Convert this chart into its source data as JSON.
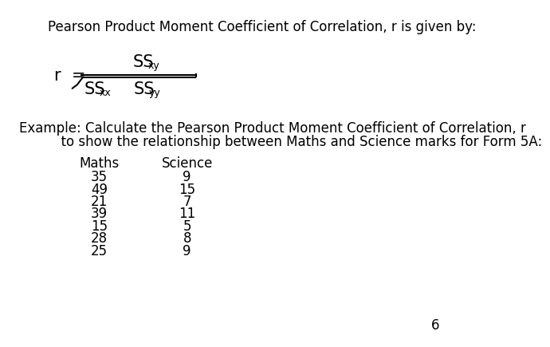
{
  "bg_color": "#ffffff",
  "title_text": "Pearson Product Moment Coefficient of Correlation, r is given by:",
  "example_line1": "Example: Calculate the Pearson Product Moment Coefficient of Correlation, r",
  "example_line2": "          to show the relationship between Maths and Science marks for Form 5A:",
  "col1_header": "Maths",
  "col2_header": "Science",
  "maths": [
    35,
    49,
    21,
    39,
    15,
    28,
    25
  ],
  "science": [
    9,
    15,
    7,
    11,
    5,
    8,
    9
  ],
  "page_num": "6",
  "title_fontsize": 12,
  "body_fontsize": 12,
  "formula_fontsize": 15,
  "sub_fontsize": 9
}
